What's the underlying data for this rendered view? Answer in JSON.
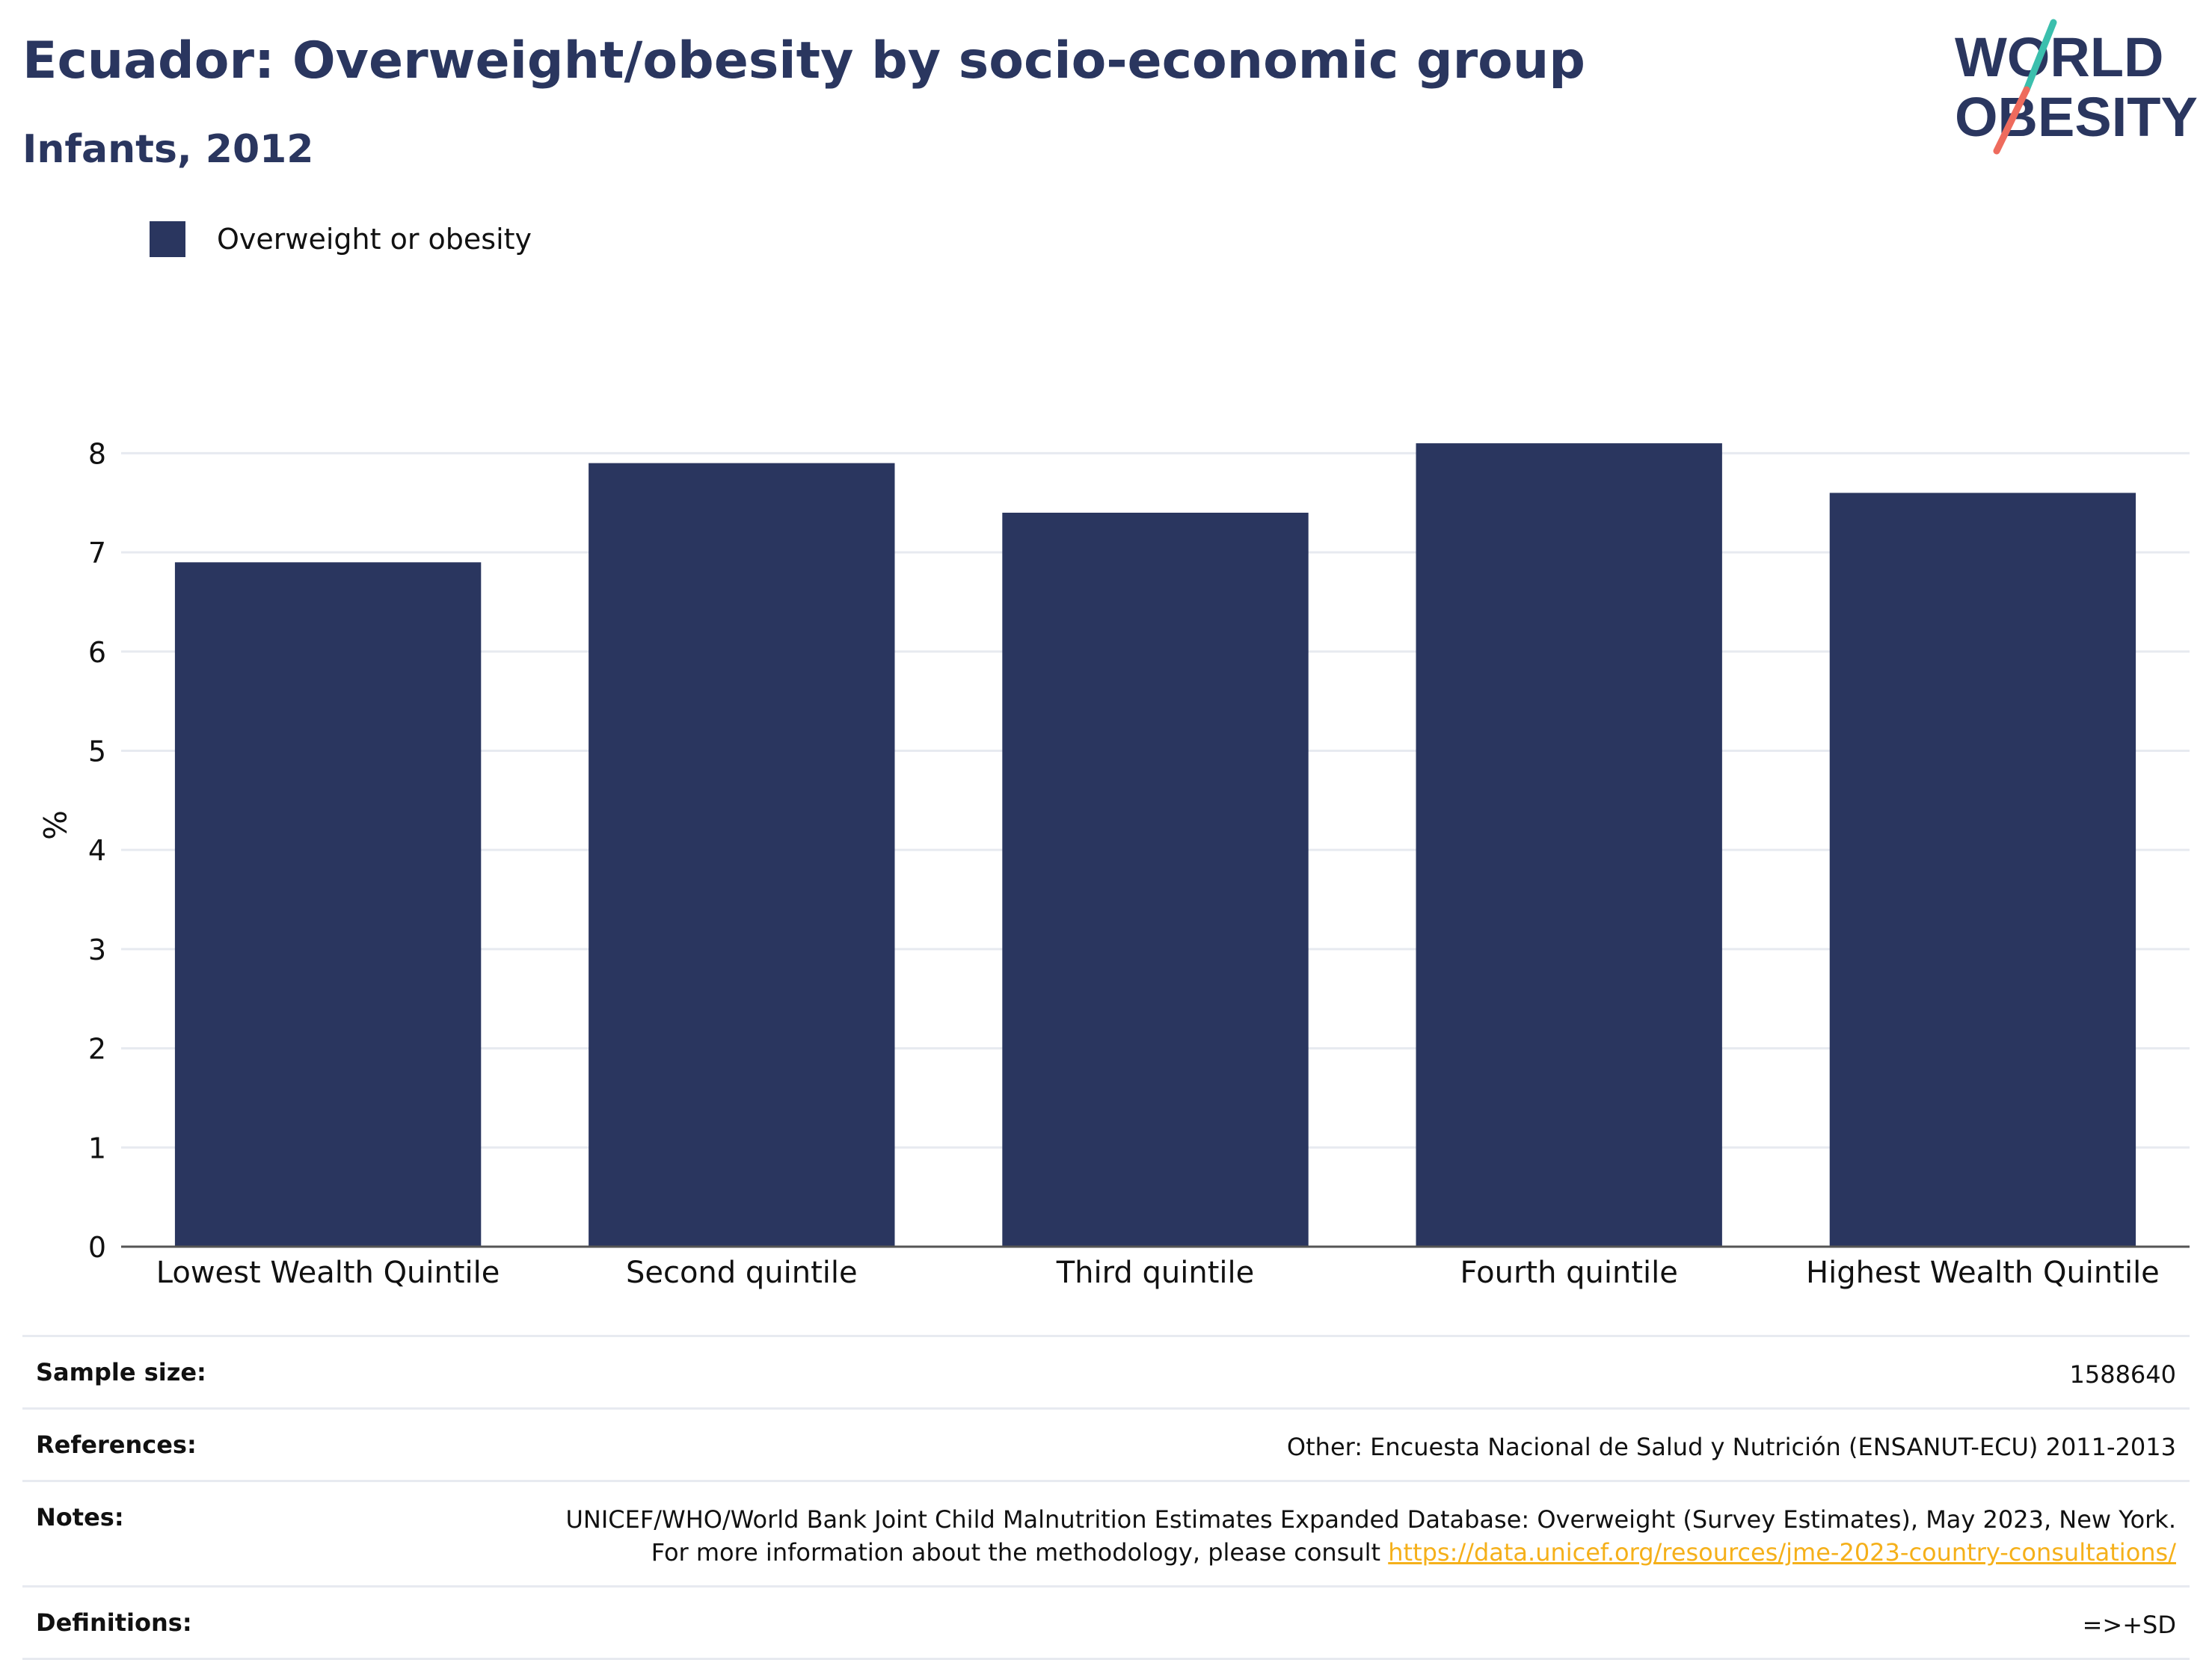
{
  "header": {
    "title": "Ecuador: Overweight/obesity by socio-economic group",
    "subtitle": "Infants, 2012"
  },
  "logo": {
    "line1": "WORLD",
    "line2": "OBESITY",
    "colors": {
      "text": "#2a365f",
      "slash_top": "#3bbfad",
      "slash_bottom": "#ee6b5d"
    }
  },
  "colors": {
    "bar": "#2a365f",
    "grid": "#e7eaf0",
    "axis": "#555555",
    "link": "#f5b01a"
  },
  "chart_data": {
    "type": "bar",
    "categories": [
      "Lowest Wealth Quintile",
      "Second quintile",
      "Third quintile",
      "Fourth quintile",
      "Highest Wealth Quintile"
    ],
    "series": [
      {
        "name": "Overweight or obesity",
        "values": [
          6.9,
          7.9,
          7.4,
          8.1,
          7.6
        ]
      }
    ],
    "ylabel": "%",
    "xlabel": "",
    "ylim": [
      0,
      8.5
    ],
    "yticks": [
      0,
      1,
      2,
      3,
      4,
      5,
      6,
      7,
      8
    ],
    "grid": true,
    "legend_position": "top-left"
  },
  "info": {
    "sample_size_label": "Sample size:",
    "sample_size_value": "1588640",
    "references_label": "References:",
    "references_value": "Other: Encuesta Nacional de Salud y Nutrición (ENSANUT-ECU) 2011-2013",
    "notes_label": "Notes:",
    "notes_text": "UNICEF/WHO/World Bank Joint Child Malnutrition Estimates Expanded Database: Overweight (Survey Estimates), May 2023, New York. For more information about the methodology, please consult ",
    "notes_link": "https://data.unicef.org/resources/jme-2023-country-consultations/",
    "definitions_label": "Definitions:",
    "definitions_value": "=>+SD"
  }
}
